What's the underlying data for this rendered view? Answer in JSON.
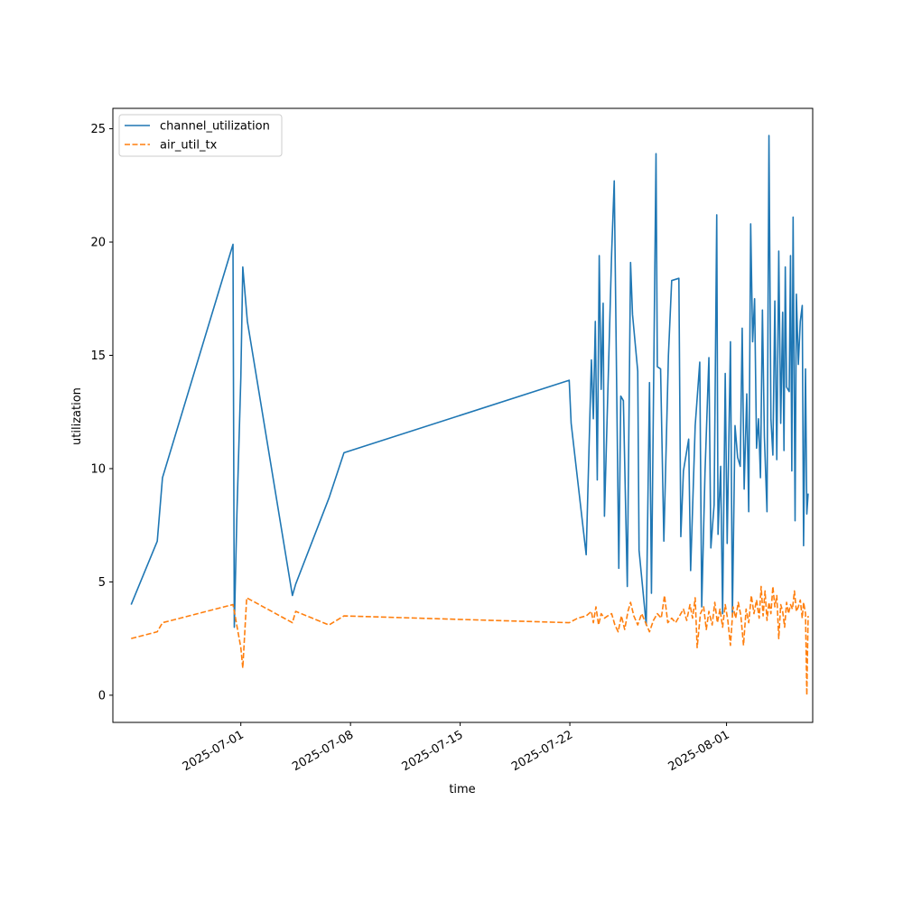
{
  "chart_data": {
    "type": "line",
    "xlabel": "time",
    "ylabel": "utilization",
    "ylim": [
      -1.2,
      25.9
    ],
    "xlim": [
      "2025-06-22T20:00",
      "2025-08-06T12:00"
    ],
    "x_ticks": [
      "2025-07-01",
      "2025-07-08",
      "2025-07-15",
      "2025-07-22",
      "2025-08-01"
    ],
    "y_ticks": [
      0,
      5,
      10,
      15,
      20,
      25
    ],
    "grid": false,
    "legend": "upper left",
    "series": [
      {
        "name": "channel_utilization",
        "color": "#1f77b4",
        "dash": "solid",
        "points": [
          [
            "2025-06-24T00:00",
            4.0
          ],
          [
            "2025-06-25T16:00",
            6.8
          ],
          [
            "2025-06-26T00:00",
            9.6
          ],
          [
            "2025-06-30T12:00",
            19.9
          ],
          [
            "2025-06-30T14:00",
            3.0
          ],
          [
            "2025-06-30T18:00",
            8.0
          ],
          [
            "2025-07-01T00:00",
            14.0
          ],
          [
            "2025-07-01T03:00",
            18.9
          ],
          [
            "2025-07-01T10:00",
            16.5
          ],
          [
            "2025-07-04T07:00",
            4.4
          ],
          [
            "2025-07-04T12:00",
            4.9
          ],
          [
            "2025-07-06T15:00",
            8.7
          ],
          [
            "2025-07-07T14:00",
            10.7
          ],
          [
            "2025-07-21T23:00",
            13.9
          ],
          [
            "2025-07-22T02:00",
            12.0
          ],
          [
            "2025-07-23T01:00",
            6.2
          ],
          [
            "2025-07-23T09:00",
            14.8
          ],
          [
            "2025-07-23T12:00",
            12.2
          ],
          [
            "2025-07-23T15:00",
            16.5
          ],
          [
            "2025-07-23T18:00",
            9.5
          ],
          [
            "2025-07-23T21:00",
            19.4
          ],
          [
            "2025-07-24T00:00",
            13.5
          ],
          [
            "2025-07-24T03:00",
            17.3
          ],
          [
            "2025-07-24T05:00",
            7.9
          ],
          [
            "2025-07-24T16:00",
            19.5
          ],
          [
            "2025-07-24T20:00",
            22.7
          ],
          [
            "2025-07-25T03:00",
            5.6
          ],
          [
            "2025-07-25T06:00",
            13.2
          ],
          [
            "2025-07-25T10:00",
            13.0
          ],
          [
            "2025-07-25T16:00",
            4.8
          ],
          [
            "2025-07-25T21:00",
            19.1
          ],
          [
            "2025-07-26T00:00",
            16.8
          ],
          [
            "2025-07-26T08:00",
            14.3
          ],
          [
            "2025-07-26T10:00",
            6.4
          ],
          [
            "2025-07-26T21:00",
            3.1
          ],
          [
            "2025-07-27T02:00",
            13.8
          ],
          [
            "2025-07-27T05:00",
            4.5
          ],
          [
            "2025-07-27T12:00",
            23.9
          ],
          [
            "2025-07-27T14:00",
            14.5
          ],
          [
            "2025-07-27T19:00",
            14.4
          ],
          [
            "2025-07-28T00:00",
            6.8
          ],
          [
            "2025-07-28T07:00",
            15.0
          ],
          [
            "2025-07-28T12:00",
            18.3
          ],
          [
            "2025-07-28T23:00",
            18.4
          ],
          [
            "2025-07-29T02:00",
            7.0
          ],
          [
            "2025-07-29T06:00",
            9.9
          ],
          [
            "2025-07-29T14:00",
            11.3
          ],
          [
            "2025-07-29T17:00",
            5.5
          ],
          [
            "2025-07-30T00:00",
            11.9
          ],
          [
            "2025-07-30T07:00",
            14.7
          ],
          [
            "2025-07-30T10:00",
            3.9
          ],
          [
            "2025-07-30T15:00",
            9.8
          ],
          [
            "2025-07-30T21:00",
            14.9
          ],
          [
            "2025-07-31T00:00",
            6.5
          ],
          [
            "2025-07-31T05:00",
            8.4
          ],
          [
            "2025-07-31T09:00",
            21.2
          ],
          [
            "2025-07-31T11:00",
            7.1
          ],
          [
            "2025-07-31T15:00",
            10.1
          ],
          [
            "2025-07-31T18:00",
            3.6
          ],
          [
            "2025-07-31T22:00",
            14.2
          ],
          [
            "2025-08-01T01:00",
            6.7
          ],
          [
            "2025-08-01T06:00",
            15.6
          ],
          [
            "2025-08-01T09:00",
            3.5
          ],
          [
            "2025-08-01T13:00",
            11.9
          ],
          [
            "2025-08-01T17:00",
            10.5
          ],
          [
            "2025-08-01T21:00",
            10.1
          ],
          [
            "2025-08-02T00:00",
            16.2
          ],
          [
            "2025-08-02T03:00",
            9.1
          ],
          [
            "2025-08-02T07:00",
            13.3
          ],
          [
            "2025-08-02T10:00",
            8.1
          ],
          [
            "2025-08-02T13:00",
            20.8
          ],
          [
            "2025-08-02T16:00",
            15.6
          ],
          [
            "2025-08-02T19:00",
            17.5
          ],
          [
            "2025-08-02T22:00",
            10.9
          ],
          [
            "2025-08-03T01:00",
            12.2
          ],
          [
            "2025-08-03T04:00",
            9.6
          ],
          [
            "2025-08-03T07:00",
            17.0
          ],
          [
            "2025-08-03T10:00",
            11.4
          ],
          [
            "2025-08-03T14:00",
            8.1
          ],
          [
            "2025-08-03T17:00",
            24.7
          ],
          [
            "2025-08-03T20:00",
            12.2
          ],
          [
            "2025-08-03T23:00",
            10.6
          ],
          [
            "2025-08-04T02:00",
            17.4
          ],
          [
            "2025-08-04T05:00",
            10.4
          ],
          [
            "2025-08-04T08:00",
            19.6
          ],
          [
            "2025-08-04T11:00",
            12.0
          ],
          [
            "2025-08-04T14:00",
            16.9
          ],
          [
            "2025-08-04T16:00",
            10.8
          ],
          [
            "2025-08-04T18:00",
            18.9
          ],
          [
            "2025-08-04T20:00",
            13.6
          ],
          [
            "2025-08-05T00:00",
            13.4
          ],
          [
            "2025-08-05T02:00",
            19.4
          ],
          [
            "2025-08-05T04:00",
            9.9
          ],
          [
            "2025-08-05T06:00",
            21.1
          ],
          [
            "2025-08-05T09:00",
            7.7
          ],
          [
            "2025-08-05T11:00",
            17.7
          ],
          [
            "2025-08-05T14:00",
            14.6
          ],
          [
            "2025-08-05T17:00",
            16.5
          ],
          [
            "2025-08-05T20:00",
            17.2
          ],
          [
            "2025-08-05T22:00",
            6.6
          ],
          [
            "2025-08-06T01:00",
            14.4
          ],
          [
            "2025-08-06T03:00",
            8.0
          ],
          [
            "2025-08-06T05:00",
            8.9
          ]
        ]
      },
      {
        "name": "air_util_tx",
        "color": "#ff7f0e",
        "dash": "dashed",
        "points": [
          [
            "2025-06-24T00:00",
            2.5
          ],
          [
            "2025-06-25T16:00",
            2.8
          ],
          [
            "2025-06-26T00:00",
            3.2
          ],
          [
            "2025-06-30T12:00",
            4.0
          ],
          [
            "2025-06-30T14:00",
            3.7
          ],
          [
            "2025-07-01T00:00",
            2.1
          ],
          [
            "2025-07-01T03:00",
            1.2
          ],
          [
            "2025-07-01T09:00",
            4.3
          ],
          [
            "2025-07-04T07:00",
            3.2
          ],
          [
            "2025-07-04T12:00",
            3.7
          ],
          [
            "2025-07-06T15:00",
            3.1
          ],
          [
            "2025-07-07T14:00",
            3.5
          ],
          [
            "2025-07-21T23:00",
            3.2
          ],
          [
            "2025-07-22T12:00",
            3.4
          ],
          [
            "2025-07-23T01:00",
            3.5
          ],
          [
            "2025-07-23T09:00",
            3.7
          ],
          [
            "2025-07-23T12:00",
            3.2
          ],
          [
            "2025-07-23T16:00",
            3.9
          ],
          [
            "2025-07-23T20:00",
            3.1
          ],
          [
            "2025-07-24T00:00",
            3.6
          ],
          [
            "2025-07-24T05:00",
            3.4
          ],
          [
            "2025-07-24T10:00",
            3.5
          ],
          [
            "2025-07-24T16:00",
            3.6
          ],
          [
            "2025-07-24T21:00",
            3.1
          ],
          [
            "2025-07-25T02:00",
            2.8
          ],
          [
            "2025-07-25T07:00",
            3.5
          ],
          [
            "2025-07-25T12:00",
            2.9
          ],
          [
            "2025-07-25T17:00",
            3.7
          ],
          [
            "2025-07-25T21:00",
            4.1
          ],
          [
            "2025-07-26T02:00",
            3.5
          ],
          [
            "2025-07-26T08:00",
            3.1
          ],
          [
            "2025-07-26T14:00",
            3.6
          ],
          [
            "2025-07-26T20:00",
            3.2
          ],
          [
            "2025-07-27T02:00",
            2.8
          ],
          [
            "2025-07-27T08:00",
            3.3
          ],
          [
            "2025-07-27T14:00",
            3.6
          ],
          [
            "2025-07-27T20:00",
            3.4
          ],
          [
            "2025-07-28T01:00",
            4.4
          ],
          [
            "2025-07-28T06:00",
            3.2
          ],
          [
            "2025-07-28T12:00",
            3.4
          ],
          [
            "2025-07-28T18:00",
            3.2
          ],
          [
            "2025-07-29T00:00",
            3.5
          ],
          [
            "2025-07-29T06:00",
            3.8
          ],
          [
            "2025-07-29T11:00",
            3.3
          ],
          [
            "2025-07-29T16:00",
            4.0
          ],
          [
            "2025-07-29T20:00",
            3.4
          ],
          [
            "2025-07-30T00:00",
            4.3
          ],
          [
            "2025-07-30T03:00",
            2.1
          ],
          [
            "2025-07-30T08:00",
            3.6
          ],
          [
            "2025-07-30T13:00",
            3.9
          ],
          [
            "2025-07-30T17:00",
            2.9
          ],
          [
            "2025-07-30T21:00",
            3.7
          ],
          [
            "2025-07-31T02:00",
            3.1
          ],
          [
            "2025-07-31T06:00",
            4.1
          ],
          [
            "2025-07-31T10:00",
            3.2
          ],
          [
            "2025-07-31T14:00",
            3.8
          ],
          [
            "2025-07-31T18:00",
            3.0
          ],
          [
            "2025-07-31T22:00",
            4.0
          ],
          [
            "2025-08-01T02:00",
            3.3
          ],
          [
            "2025-08-01T06:00",
            2.2
          ],
          [
            "2025-08-01T10:00",
            3.9
          ],
          [
            "2025-08-01T14:00",
            3.4
          ],
          [
            "2025-08-01T18:00",
            4.1
          ],
          [
            "2025-08-01T22:00",
            3.5
          ],
          [
            "2025-08-02T02:00",
            2.2
          ],
          [
            "2025-08-02T06:00",
            3.8
          ],
          [
            "2025-08-02T10:00",
            3.2
          ],
          [
            "2025-08-02T14:00",
            4.4
          ],
          [
            "2025-08-02T18:00",
            3.6
          ],
          [
            "2025-08-02T22:00",
            4.2
          ],
          [
            "2025-08-03T02:00",
            3.4
          ],
          [
            "2025-08-03T05:00",
            4.8
          ],
          [
            "2025-08-03T08:00",
            3.5
          ],
          [
            "2025-08-03T11:00",
            4.6
          ],
          [
            "2025-08-03T14:00",
            3.3
          ],
          [
            "2025-08-03T17:00",
            4.1
          ],
          [
            "2025-08-03T20:00",
            3.6
          ],
          [
            "2025-08-03T23:00",
            4.8
          ],
          [
            "2025-08-04T02:00",
            3.9
          ],
          [
            "2025-08-04T05:00",
            4.4
          ],
          [
            "2025-08-04T08:00",
            2.5
          ],
          [
            "2025-08-04T11:00",
            4.0
          ],
          [
            "2025-08-04T14:00",
            3.7
          ],
          [
            "2025-08-04T17:00",
            3.0
          ],
          [
            "2025-08-04T20:00",
            4.1
          ],
          [
            "2025-08-04T23:00",
            3.6
          ],
          [
            "2025-08-05T02:00",
            4.0
          ],
          [
            "2025-08-05T05:00",
            3.8
          ],
          [
            "2025-08-05T08:00",
            4.6
          ],
          [
            "2025-08-05T11:00",
            3.7
          ],
          [
            "2025-08-05T14:00",
            3.9
          ],
          [
            "2025-08-05T17:00",
            4.2
          ],
          [
            "2025-08-05T20:00",
            3.4
          ],
          [
            "2025-08-05T22:00",
            4.1
          ],
          [
            "2025-08-06T01:00",
            3.6
          ],
          [
            "2025-08-06T03:00",
            0.0
          ],
          [
            "2025-08-06T05:00",
            3.5
          ]
        ]
      }
    ]
  }
}
